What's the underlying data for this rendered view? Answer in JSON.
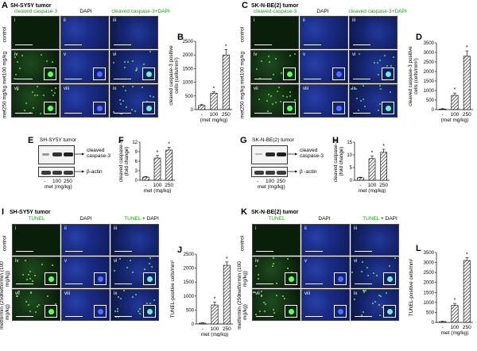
{
  "panels": {
    "A": {
      "letter": "A",
      "title": "SH-SY5Y tumor",
      "hdr_green": "cleaved caspase-3",
      "hdr_dapi": "DAPI",
      "hdr_merge": "cleaved caspase-3+DAPI",
      "rows": [
        "control",
        "met100 mg/kg",
        "met250 mg/kg"
      ],
      "romans": [
        "i",
        "ii",
        "iii",
        "iv",
        "v",
        "vi",
        "vii",
        "viii",
        "ix"
      ]
    },
    "C": {
      "letter": "C",
      "title": "SK-N-BE(2) tumor",
      "hdr_green": "cleaved caspase-3",
      "hdr_dapi": "DAPI",
      "hdr_merge": "cleaved caspase-3+DAPI",
      "rows": [
        "control",
        "met100 mg/kg",
        "met250 mg/kg"
      ],
      "romans": [
        "i",
        "ii",
        "iii",
        "iv",
        "v",
        "vi",
        "vii",
        "viii",
        "ix"
      ]
    },
    "I": {
      "letter": "I",
      "title": "SH-SY5Y tumor",
      "hdr_green": "TUNEL",
      "hdr_dapi": "DAPI",
      "hdr_merge_a": "TUNEL",
      "hdr_merge_b": "+ DAPI",
      "rows": [
        "control",
        "metformin (100 mg/kg)",
        "metformin (250 mg/kg)"
      ],
      "romans": [
        "i",
        "ii",
        "iii",
        "iv",
        "v",
        "vi",
        "vii",
        "viii",
        "ix"
      ]
    },
    "K": {
      "letter": "K",
      "title": "SK-N-BE(2) tumor",
      "hdr_green": "TUNEL",
      "hdr_dapi": "DAPI",
      "hdr_merge_a": "TUNEL",
      "hdr_merge_b": "+ DAPI",
      "rows": [
        "control",
        "metformin (100 mg/kg)",
        "metformin (250 mg/kg)"
      ],
      "romans": [
        "i",
        "ii",
        "iii",
        "iv",
        "v",
        "vi",
        "vii",
        "viii",
        "ix"
      ]
    },
    "E": {
      "letter": "E",
      "title": "SH-SY5Y tumor",
      "band1": "cleaved caspase-3",
      "band2": "β-actin",
      "lanes": [
        "-",
        "100",
        "250"
      ],
      "xlabel": "met (mg/kg)"
    },
    "G": {
      "letter": "G",
      "title": "SK-N-BE(2) tumor",
      "band1": "cleaved caspase-3",
      "band2": "β -actin",
      "lanes": [
        "-",
        "100",
        "250"
      ],
      "xlabel": "met (mg/kg)"
    }
  },
  "chart_data": [
    {
      "panel": "B",
      "type": "bar",
      "categories": [
        "-",
        "100",
        "250"
      ],
      "values": [
        150,
        600,
        2000
      ],
      "errors": [
        40,
        60,
        200
      ],
      "sig": [
        "",
        "*",
        "*"
      ],
      "ylabel": "cleaved caspase-3 positive cells (cells/mm²)",
      "xlabel": "(met mg/kg)",
      "ylim": [
        0,
        2500
      ],
      "yticks": [
        0,
        500,
        1000,
        1500,
        2000,
        2500
      ]
    },
    {
      "panel": "D",
      "type": "bar",
      "categories": [
        "-",
        "100",
        "250"
      ],
      "values": [
        30,
        750,
        2800
      ],
      "errors": [
        20,
        120,
        280
      ],
      "sig": [
        "",
        "*",
        "*"
      ],
      "ylabel": "cleaved caspase-3 positive cells (cells/mm²)",
      "xlabel": "(met mg/kg)",
      "ylim": [
        0,
        3500
      ],
      "yticks": [
        0,
        500,
        1000,
        1500,
        2000,
        2500,
        3000,
        3500
      ]
    },
    {
      "panel": "F",
      "type": "bar",
      "categories": [
        "-",
        "100",
        "250"
      ],
      "values": [
        1,
        7,
        9.5
      ],
      "errors": [
        0.2,
        0.8,
        0.9
      ],
      "sig": [
        "",
        "*",
        "*"
      ],
      "ylabel": "cleaved caspase-3 (fold change)",
      "xlabel": "met (mg/kg)",
      "ylim": [
        0,
        12
      ],
      "yticks": [
        0,
        3,
        6,
        9,
        12
      ]
    },
    {
      "panel": "H",
      "type": "bar",
      "categories": [
        "-",
        "100",
        "250"
      ],
      "values": [
        1,
        8.5,
        11
      ],
      "errors": [
        0.2,
        1.0,
        1.2
      ],
      "sig": [
        "",
        "*",
        "*"
      ],
      "ylabel": "cleaved caspase-3 (fold change)",
      "xlabel": "met (mg/kg)",
      "ylim": [
        0,
        15
      ],
      "yticks": [
        0,
        5,
        10,
        15
      ]
    },
    {
      "panel": "J",
      "type": "bar",
      "categories": [
        "-",
        "100",
        "250"
      ],
      "values": [
        30,
        680,
        2100
      ],
      "errors": [
        15,
        100,
        120
      ],
      "sig": [
        "",
        "*",
        "*"
      ],
      "ylabel": "TUNEL-positive cells/mm²",
      "xlabel": "met (mg/kg)",
      "ylim": [
        0,
        2500
      ],
      "yticks": [
        0,
        500,
        1000,
        1500,
        2000,
        2500
      ]
    },
    {
      "panel": "L",
      "type": "bar",
      "categories": [
        "-",
        "100",
        "250"
      ],
      "values": [
        40,
        850,
        3100
      ],
      "errors": [
        20,
        100,
        150
      ],
      "sig": [
        "",
        "*",
        "*"
      ],
      "ylabel": "TUNEL-positive cells/mm²",
      "xlabel": "met (mg/kg)",
      "ylim": [
        0,
        3500
      ],
      "yticks": [
        0,
        500,
        1000,
        1500,
        2000,
        2500,
        3000,
        3500
      ]
    }
  ]
}
